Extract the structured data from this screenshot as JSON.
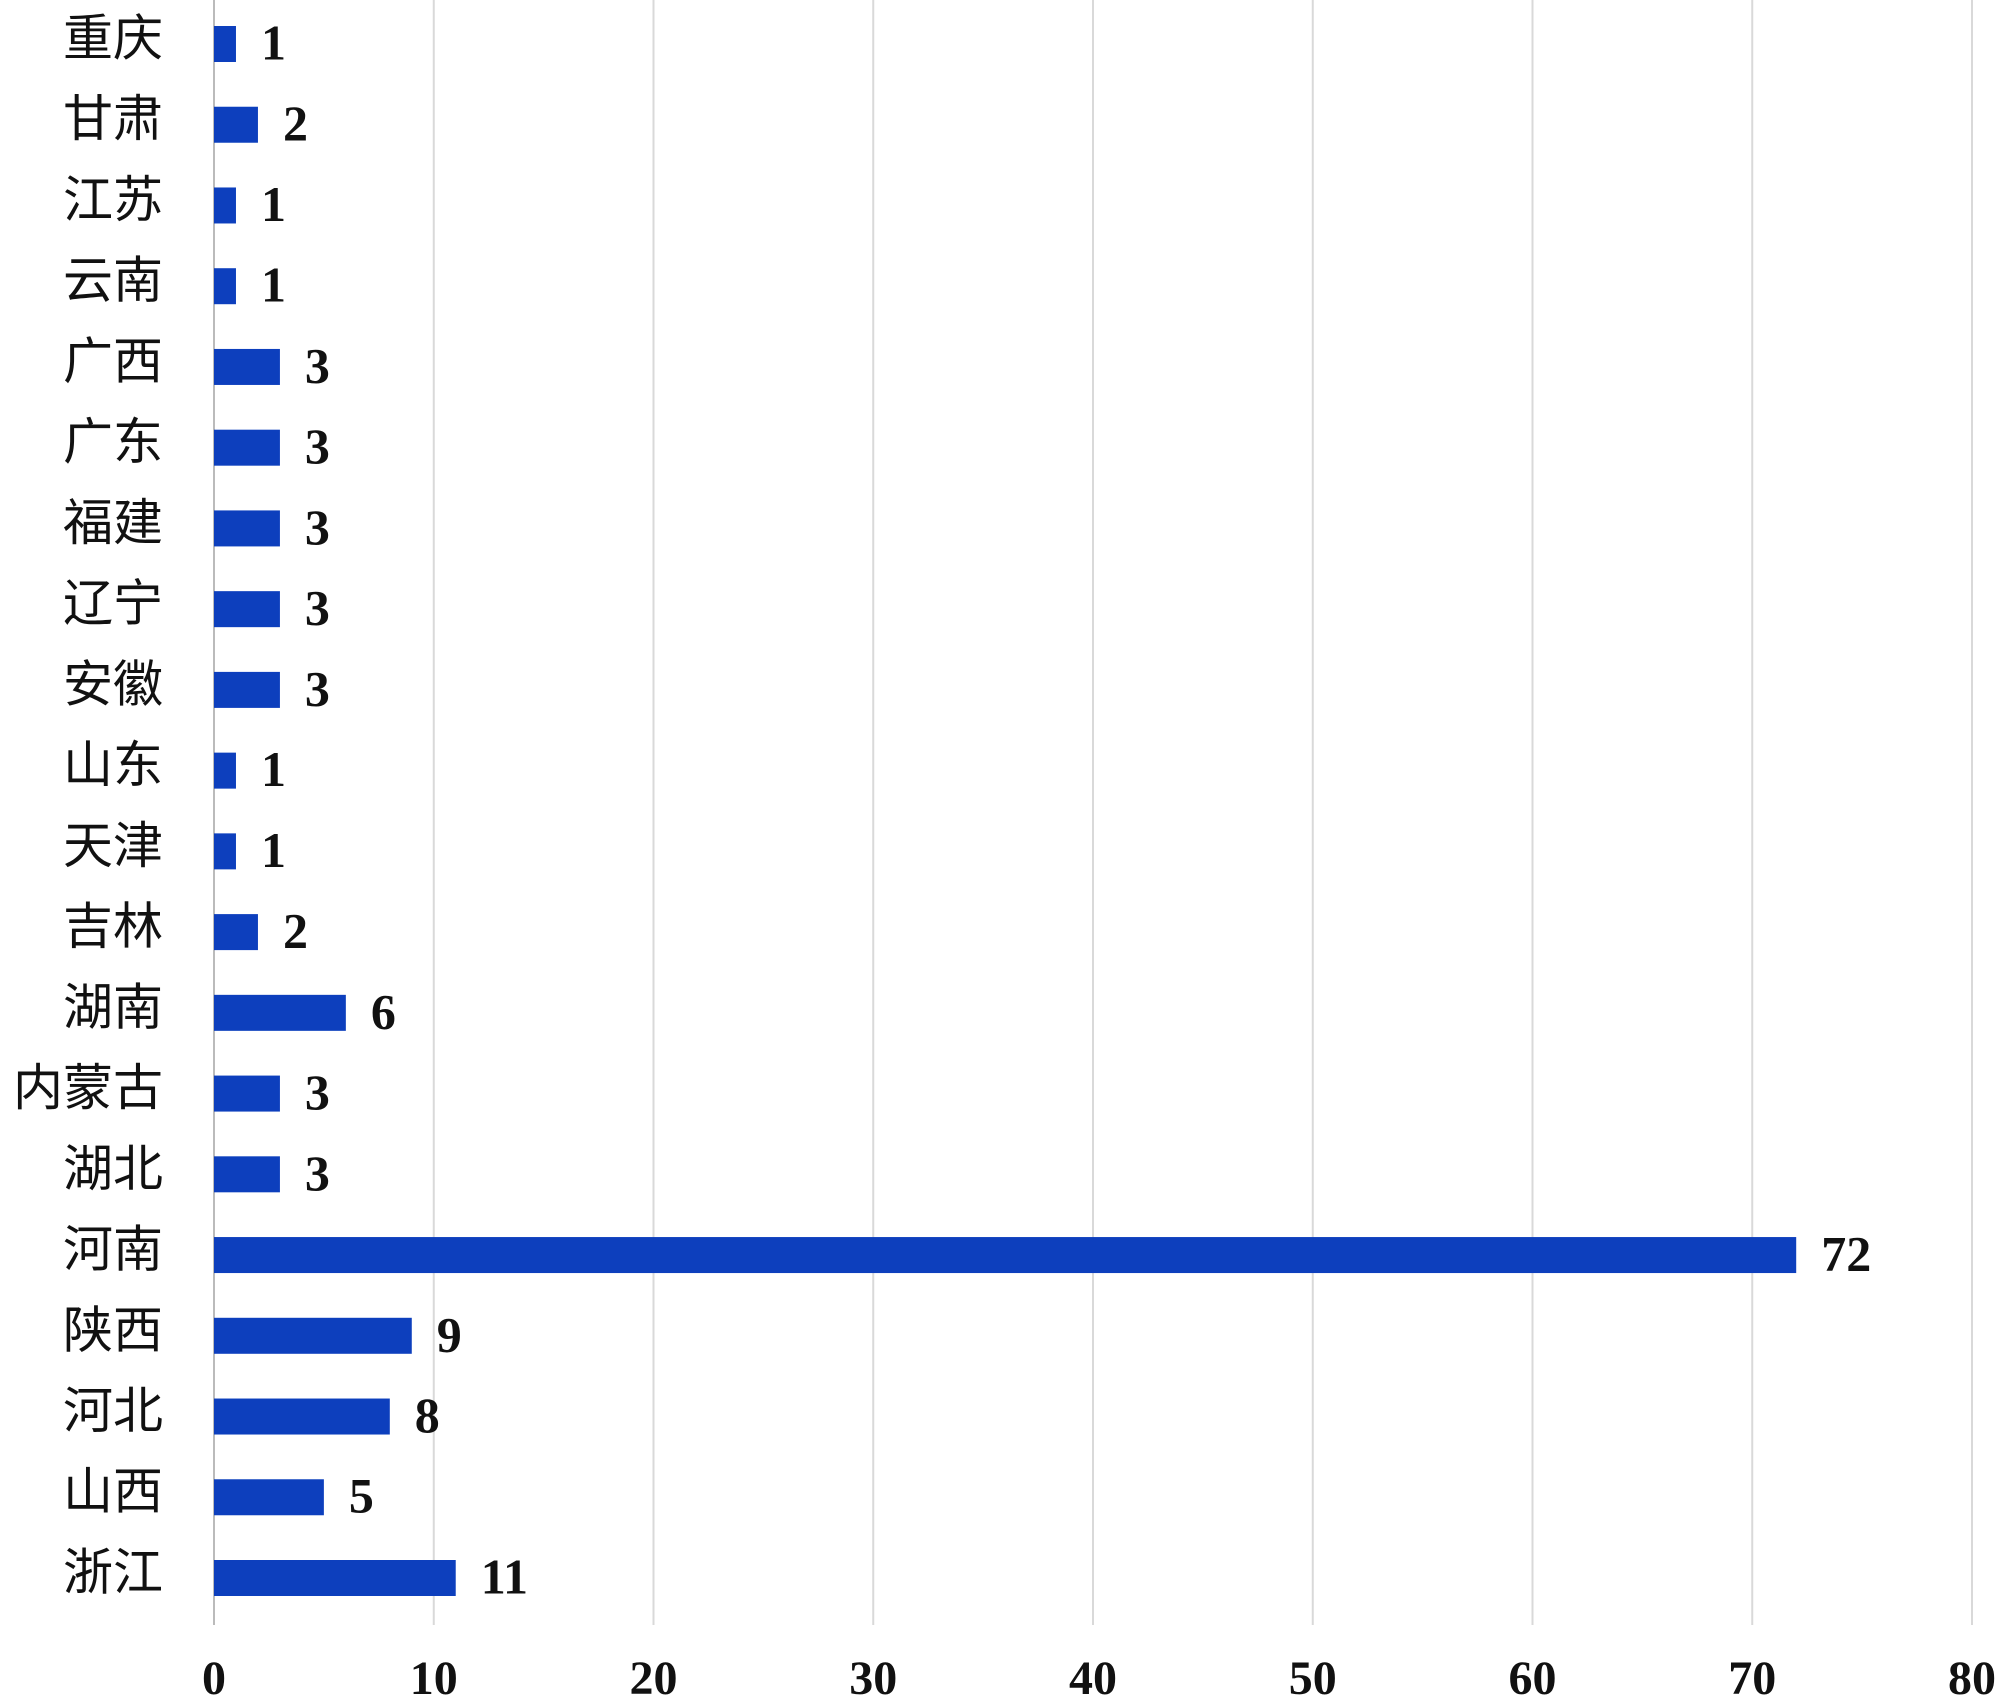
{
  "chart_data": {
    "type": "bar",
    "orientation": "horizontal",
    "categories": [
      "重庆",
      "甘肃",
      "江苏",
      "云南",
      "广西",
      "广东",
      "福建",
      "辽宁",
      "安徽",
      "山东",
      "天津",
      "吉林",
      "湖南",
      "内蒙古",
      "湖北",
      "河南",
      "陕西",
      "河北",
      "山西",
      "浙江"
    ],
    "values": [
      1,
      2,
      1,
      1,
      3,
      3,
      3,
      3,
      3,
      1,
      1,
      2,
      6,
      3,
      3,
      72,
      9,
      8,
      5,
      11
    ],
    "color": "#0d3fbd",
    "xlim": [
      0,
      80
    ],
    "xticks": [
      0,
      10,
      20,
      30,
      40,
      50,
      60,
      70,
      80
    ],
    "grid": true
  }
}
